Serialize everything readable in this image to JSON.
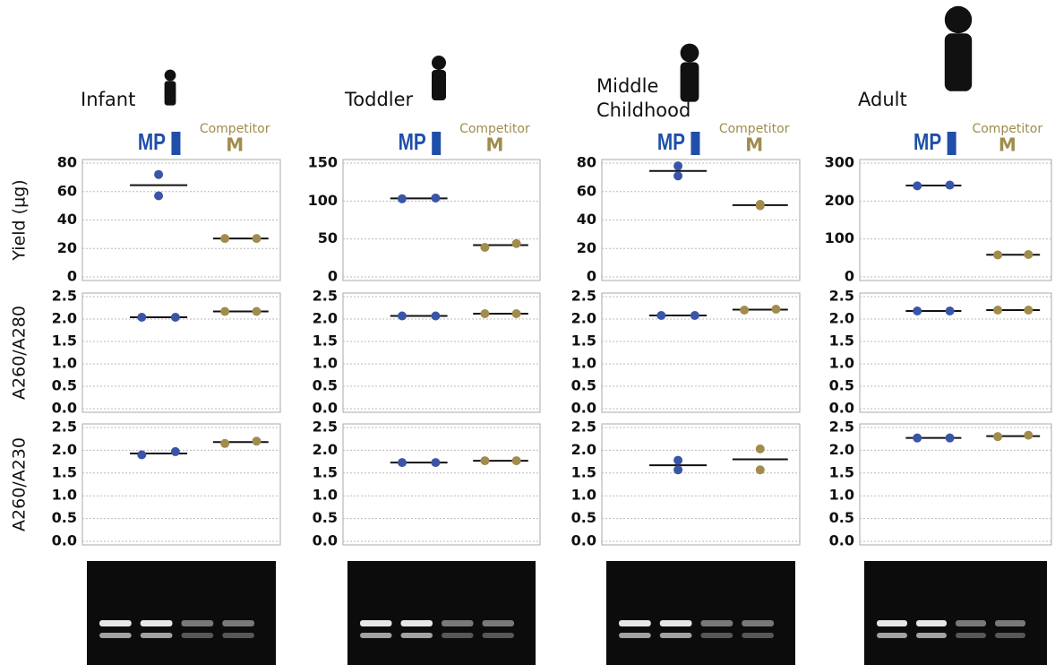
{
  "groups": {
    "mp": "MP",
    "competitor": "Competitor",
    "competitor_mark": "M"
  },
  "chart_data": [
    {
      "type": "dot",
      "title": "Infant",
      "ylabel": "Yield (µg)",
      "ylim": [
        0,
        80
      ],
      "yticks": [
        0,
        20,
        40,
        60,
        80
      ],
      "grid": true,
      "series": [
        {
          "color": "#3a55a6",
          "values": [
            72,
            57
          ],
          "mean": 64.5
        },
        {
          "color": "#a08c4c",
          "values": [
            27,
            27
          ],
          "mean": 27
        }
      ]
    },
    {
      "type": "dot",
      "ylabel": "A260/A280",
      "ylim": [
        0,
        2.5
      ],
      "yticks": [
        {
          "value": 0,
          "label": "0.0"
        },
        0.5,
        {
          "value": 1,
          "label": "1.0"
        },
        1.5,
        {
          "value": 2,
          "label": "2.0"
        },
        2.5
      ],
      "grid": true,
      "series": [
        {
          "color": "#3a55a6",
          "values": [
            2.04,
            2.04
          ],
          "mean": 2.04
        },
        {
          "color": "#a08c4c",
          "values": [
            2.17,
            2.17
          ],
          "mean": 2.17
        }
      ]
    },
    {
      "type": "dot",
      "ylabel": "A260/A230",
      "ylim": [
        0,
        2.5
      ],
      "yticks": [
        {
          "value": 0,
          "label": "0.0"
        },
        0.5,
        {
          "value": 1,
          "label": "1.0"
        },
        1.5,
        {
          "value": 2,
          "label": "2.0"
        },
        2.5
      ],
      "grid": true,
      "series": [
        {
          "color": "#3a55a6",
          "values": [
            1.9,
            1.97
          ],
          "mean": 1.93
        },
        {
          "color": "#a08c4c",
          "values": [
            2.15,
            2.2
          ],
          "mean": 2.18
        }
      ]
    },
    {
      "type": "dot",
      "title": "Toddler",
      "ylim": [
        0,
        150
      ],
      "yticks": [
        0,
        50,
        100,
        150
      ],
      "grid": true,
      "series": [
        {
          "color": "#3a55a6",
          "values": [
            103,
            104
          ],
          "mean": 103.5
        },
        {
          "color": "#a08c4c",
          "values": [
            39,
            44
          ],
          "mean": 42
        }
      ]
    },
    {
      "type": "dot",
      "ylim": [
        0,
        2.5
      ],
      "yticks": [
        {
          "value": 0,
          "label": "0.0"
        },
        0.5,
        {
          "value": 1,
          "label": "1.0"
        },
        1.5,
        {
          "value": 2,
          "label": "2.0"
        },
        2.5
      ],
      "grid": true,
      "series": [
        {
          "color": "#3a55a6",
          "values": [
            2.07,
            2.07
          ],
          "mean": 2.07
        },
        {
          "color": "#a08c4c",
          "values": [
            2.12,
            2.12
          ],
          "mean": 2.12
        }
      ]
    },
    {
      "type": "dot",
      "ylim": [
        0,
        2.5
      ],
      "yticks": [
        {
          "value": 0,
          "label": "0.0"
        },
        0.5,
        {
          "value": 1,
          "label": "1.0"
        },
        1.5,
        {
          "value": 2,
          "label": "2.0"
        },
        2.5
      ],
      "grid": true,
      "series": [
        {
          "color": "#3a55a6",
          "values": [
            1.73,
            1.73
          ],
          "mean": 1.73
        },
        {
          "color": "#a08c4c",
          "values": [
            1.77,
            1.77
          ],
          "mean": 1.77
        }
      ]
    },
    {
      "type": "dot",
      "title": "Middle Childhood",
      "ylim": [
        0,
        80
      ],
      "yticks": [
        0,
        20,
        40,
        60,
        80
      ],
      "grid": true,
      "series": [
        {
          "color": "#3a55a6",
          "values": [
            78,
            71
          ],
          "mean": 74.5
        },
        {
          "color": "#a08c4c",
          "values": [
            50,
            51
          ],
          "mean": 50.5
        }
      ]
    },
    {
      "type": "dot",
      "ylim": [
        0,
        2.5
      ],
      "yticks": [
        {
          "value": 0,
          "label": "0.0"
        },
        0.5,
        {
          "value": 1,
          "label": "1.0"
        },
        1.5,
        {
          "value": 2,
          "label": "2.0"
        },
        2.5
      ],
      "grid": true,
      "series": [
        {
          "color": "#3a55a6",
          "values": [
            2.08,
            2.08
          ],
          "mean": 2.08
        },
        {
          "color": "#a08c4c",
          "values": [
            2.2,
            2.22
          ],
          "mean": 2.21
        }
      ]
    },
    {
      "type": "dot",
      "ylim": [
        0,
        2.5
      ],
      "yticks": [
        {
          "value": 0,
          "label": "0.0"
        },
        0.5,
        {
          "value": 1,
          "label": "1.0"
        },
        1.5,
        {
          "value": 2,
          "label": "2.0"
        },
        2.5
      ],
      "grid": true,
      "series": [
        {
          "color": "#3a55a6",
          "values": [
            1.78,
            1.57
          ],
          "mean": 1.67
        },
        {
          "color": "#a08c4c",
          "values": [
            2.03,
            1.57
          ],
          "mean": 1.8
        }
      ]
    },
    {
      "type": "dot",
      "title": "Adult",
      "ylim": [
        0,
        300
      ],
      "yticks": [
        0,
        100,
        200,
        300
      ],
      "grid": true,
      "series": [
        {
          "color": "#3a55a6",
          "values": [
            240,
            242
          ],
          "mean": 241
        },
        {
          "color": "#a08c4c",
          "values": [
            58,
            59
          ],
          "mean": 58.5
        }
      ]
    },
    {
      "type": "dot",
      "ylim": [
        0,
        2.5
      ],
      "yticks": [
        {
          "value": 0,
          "label": "0.0"
        },
        0.5,
        {
          "value": 1,
          "label": "1.0"
        },
        1.5,
        {
          "value": 2,
          "label": "2.0"
        },
        2.5
      ],
      "grid": true,
      "series": [
        {
          "color": "#3a55a6",
          "values": [
            2.18,
            2.18
          ],
          "mean": 2.18
        },
        {
          "color": "#a08c4c",
          "values": [
            2.2,
            2.2
          ],
          "mean": 2.2
        }
      ]
    },
    {
      "type": "dot",
      "ylim": [
        0,
        2.5
      ],
      "yticks": [
        {
          "value": 0,
          "label": "0.0"
        },
        0.5,
        {
          "value": 1,
          "label": "1.0"
        },
        1.5,
        {
          "value": 2,
          "label": "2.0"
        },
        2.5
      ],
      "grid": true,
      "series": [
        {
          "color": "#3a55a6",
          "values": [
            2.27,
            2.27
          ],
          "mean": 2.27
        },
        {
          "color": "#a08c4c",
          "values": [
            2.3,
            2.33
          ],
          "mean": 2.31
        }
      ]
    }
  ]
}
